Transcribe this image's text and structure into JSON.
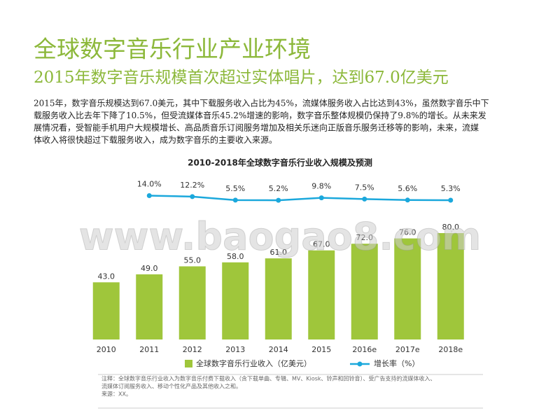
{
  "header": {
    "title": "全球数字音乐行业产业环境",
    "subtitle": "2015年数字音乐规模首次超过实体唱片，达到67.0亿美元"
  },
  "paragraph": [
    "2015年，数字音乐规模达到67.0美元，其中下载服务收入占比为45%，流媒体服务收入占比达到43%，虽然数字音乐中下",
    "载服务收入比去年下降了10.5%，但受流媒体音乐45.2%增速的影响，数字音乐整体规模仍保持了9.8%的增长。从未来发",
    "展情况看，受智能手机用户大规模增长、高品质音乐订阅服务增加及相关乐迷向正版音乐服务迁移等的影响，未来，流媒",
    "体收入将很快超过下载服务收入，成为数字音乐的主要收入来源。"
  ],
  "watermark": "www.baogao8.com",
  "chart_data": {
    "type": "bar",
    "title": "2010-2018年全球数字音乐行业收入规模及预测",
    "categories": [
      "2010",
      "2011",
      "2012",
      "2013",
      "2014",
      "2015",
      "2016e",
      "2017e",
      "2018e"
    ],
    "series": [
      {
        "name": "全球数字音乐行业收入（亿美元）",
        "color": "#9fc63b",
        "values": [
          43,
          49,
          55,
          58,
          61,
          67,
          72,
          76,
          80
        ],
        "value_labels": [
          "43.0",
          "49.0",
          "55.0",
          "58.0",
          "61.0",
          "67.0",
          "72.0",
          "76.0",
          "80.0"
        ]
      },
      {
        "name": "增长率（%）",
        "color": "#1ba8dc",
        "axis": "y2",
        "values": [
          null,
          14.0,
          12.2,
          5.5,
          5.2,
          9.8,
          7.5,
          5.6,
          5.3
        ],
        "value_labels": [
          null,
          "14.0%",
          "12.2%",
          "5.5%",
          "5.2%",
          "9.8%",
          "7.5%",
          "5.6%",
          "5.3%"
        ]
      }
    ],
    "ylim": [
      0,
      100
    ],
    "y2lim": [
      -20,
      20
    ]
  },
  "notes": [
    "注释：全球数字音乐行业收入为数字音乐付费下载收入（含下载单曲、专辑、MV、Kiosk、铃声和回铃音）、受广告支持的流媒体收入、",
    "流媒体订阅服务收入、移动个性化产品及其他收入之和。",
    "来源：XX。"
  ]
}
